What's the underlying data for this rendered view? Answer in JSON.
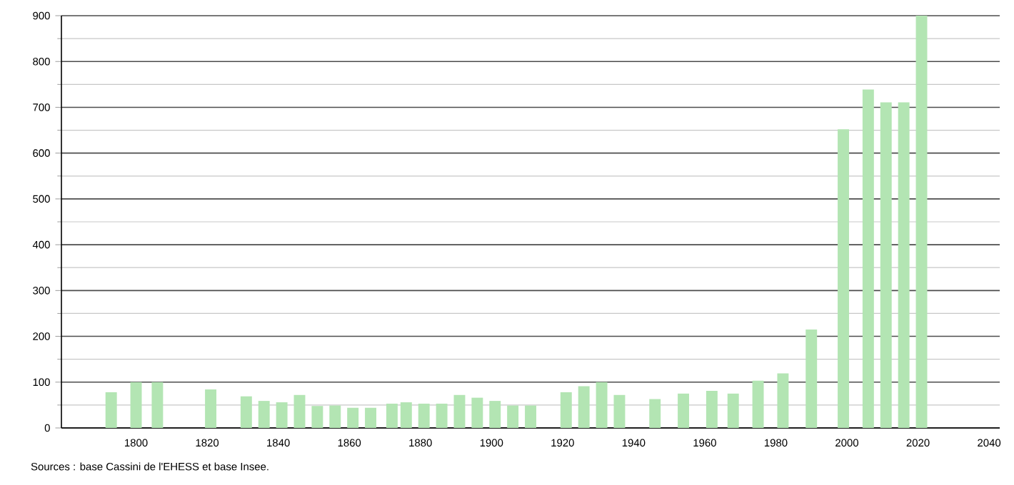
{
  "chart_data": {
    "type": "bar",
    "color": "#b3e5b3",
    "x": [
      1793,
      1800,
      1806,
      1821,
      1831,
      1836,
      1841,
      1846,
      1851,
      1856,
      1861,
      1866,
      1872,
      1876,
      1881,
      1886,
      1891,
      1896,
      1901,
      1906,
      1911,
      1921,
      1926,
      1931,
      1936,
      1946,
      1954,
      1962,
      1968,
      1975,
      1982,
      1990,
      1999,
      2006,
      2011,
      2016,
      2021
    ],
    "values": [
      78,
      100,
      100,
      84,
      69,
      59,
      56,
      72,
      48,
      49,
      44,
      44,
      53,
      56,
      53,
      53,
      72,
      66,
      59,
      49,
      49,
      78,
      91,
      100,
      72,
      63,
      75,
      81,
      75,
      103,
      119,
      215,
      652,
      739,
      711,
      711,
      900
    ],
    "xlim": [
      1779,
      2043
    ],
    "xticks": [
      1800,
      1820,
      1840,
      1860,
      1880,
      1900,
      1920,
      1940,
      1960,
      1980,
      2000,
      2020,
      2040
    ],
    "ylim": [
      0,
      900
    ],
    "yticks": [
      0,
      100,
      200,
      300,
      400,
      500,
      600,
      700,
      800,
      900
    ],
    "grid": "y",
    "annotations": [
      "Sources : base Cassini de l'EHESS et base Insee."
    ]
  }
}
